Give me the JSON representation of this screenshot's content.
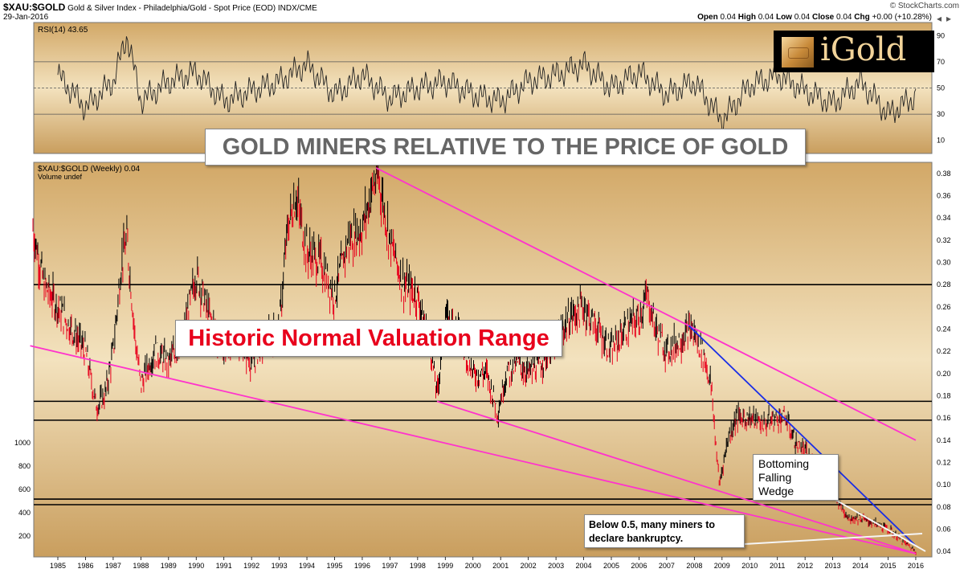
{
  "header": {
    "symbol": "$XAU:$GOLD",
    "description": "Gold & Silver Index - Philadelphia/Gold - Spot Price (EOD)",
    "exchange": "INDX/CME",
    "date": "29-Jan-2016",
    "watermark": "© StockCharts.com",
    "ohlc": {
      "open_label": "Open",
      "open": "0.04",
      "high_label": "High",
      "high": "0.04",
      "low_label": "Low",
      "low": "0.04",
      "close_label": "Close",
      "close": "0.04",
      "chg_label": "Chg",
      "chg": "+0.00 (+10.28%)"
    }
  },
  "logo": {
    "text": "iGold"
  },
  "annotations": {
    "title_box": "GOLD MINERS RELATIVE TO THE PRICE OF GOLD",
    "normal_range": "Historic Normal Valuation Range",
    "wedge": [
      "Bottoming",
      "Falling",
      "Wedge"
    ],
    "bankruptcy": [
      "Below 0.5, many miners to",
      "declare bankruptcy."
    ]
  },
  "colors": {
    "background": "#d9b47c",
    "price_up": "#000000",
    "price_down": "#e8001c",
    "channel": "#ff33cc",
    "wedge_top": "#1a2ee6",
    "level": "#000000"
  },
  "chart_data": [
    {
      "type": "line",
      "title": "RSI(14) 43.65",
      "y_ticks": [
        10,
        30,
        50,
        70,
        90
      ],
      "ylim": [
        0,
        100
      ],
      "reference_lines": [
        30,
        50,
        70
      ],
      "x": [
        1985,
        1986,
        1987,
        1987.5,
        1988,
        1989,
        1990,
        1991,
        1992,
        1993,
        1994,
        1995,
        1996,
        1997,
        1998,
        1999,
        2000,
        2001,
        2002,
        2003,
        2004,
        2005,
        2006,
        2007,
        2008,
        2009,
        2010,
        2011,
        2012,
        2013,
        2014,
        2015,
        2016
      ],
      "values": [
        60,
        35,
        55,
        90,
        40,
        55,
        62,
        40,
        48,
        55,
        68,
        45,
        60,
        42,
        50,
        55,
        45,
        40,
        55,
        60,
        68,
        50,
        62,
        45,
        55,
        25,
        52,
        60,
        48,
        38,
        55,
        30,
        43.65
      ]
    },
    {
      "type": "line",
      "title": "$XAU:$GOLD (Weekly) 0.04",
      "subtitle": "Volume undef",
      "x_ticks": [
        "1985",
        "1986",
        "1987",
        "1988",
        "1989",
        "1990",
        "1991",
        "1992",
        "1993",
        "1994",
        "1995",
        "1996",
        "1997",
        "1998",
        "1999",
        "2000",
        "2001",
        "2002",
        "2003",
        "2004",
        "2005",
        "2006",
        "2007",
        "2008",
        "2009",
        "2010",
        "2011",
        "2012",
        "2013",
        "2014",
        "2015",
        "2016"
      ],
      "y_ticks": [
        0.04,
        0.06,
        0.08,
        0.1,
        0.12,
        0.14,
        0.16,
        0.18,
        0.2,
        0.22,
        0.24,
        0.26,
        0.28,
        0.3,
        0.32,
        0.34,
        0.36,
        0.38
      ],
      "volume_ticks": [
        200,
        400,
        600,
        800,
        1000
      ],
      "ylim": [
        0.035,
        0.39
      ],
      "grid": false,
      "series": [
        {
          "x": [
            1984.1,
            1984.5,
            1985,
            1985.5,
            1986,
            1986.4,
            1986.7,
            1987,
            1987.3,
            1987.5,
            1987.8,
            1988,
            1988.5,
            1989,
            1989.5,
            1990,
            1990.5,
            1991,
            1991.5,
            1992,
            1992.5,
            1993,
            1993.3,
            1993.6,
            1994,
            1994.5,
            1995,
            1995.5,
            1996,
            1996.4,
            1996.6,
            1997,
            1997.5,
            1998,
            1998.5,
            1998.7,
            1999,
            1999.5,
            2000,
            2000.5,
            2000.9,
            2001.2,
            2001.6,
            2002,
            2002.5,
            2003,
            2003.5,
            2004,
            2004.5,
            2005,
            2005.5,
            2006,
            2006.3,
            2006.6,
            2007,
            2007.5,
            2007.9,
            2008.3,
            2008.6,
            2008.9,
            2009.2,
            2009.5,
            2010,
            2010.5,
            2011,
            2011.3,
            2011.7,
            2012,
            2012.5,
            2013,
            2013.3,
            2013.6,
            2014,
            2014.5,
            2015,
            2015.5,
            2016
          ],
          "values": [
            0.33,
            0.28,
            0.26,
            0.24,
            0.22,
            0.17,
            0.18,
            0.22,
            0.3,
            0.32,
            0.23,
            0.19,
            0.22,
            0.21,
            0.23,
            0.29,
            0.25,
            0.22,
            0.23,
            0.21,
            0.23,
            0.24,
            0.33,
            0.36,
            0.31,
            0.3,
            0.27,
            0.32,
            0.33,
            0.37,
            0.375,
            0.32,
            0.28,
            0.27,
            0.22,
            0.18,
            0.25,
            0.24,
            0.2,
            0.2,
            0.165,
            0.2,
            0.21,
            0.2,
            0.21,
            0.23,
            0.25,
            0.26,
            0.24,
            0.22,
            0.24,
            0.25,
            0.27,
            0.24,
            0.22,
            0.23,
            0.24,
            0.22,
            0.19,
            0.1,
            0.14,
            0.16,
            0.16,
            0.155,
            0.16,
            0.16,
            0.135,
            0.13,
            0.11,
            0.095,
            0.08,
            0.07,
            0.07,
            0.065,
            0.06,
            0.05,
            0.04
          ]
        }
      ],
      "horizontal_levels": [
        0.28,
        0.175,
        0.158,
        0.087,
        0.082
      ],
      "trendlines": [
        {
          "color": "magenta",
          "from": [
            1996.5,
            0.385
          ],
          "to": [
            2016,
            0.14
          ]
        },
        {
          "color": "magenta",
          "from": [
            1998.7,
            0.175
          ],
          "to": [
            2016,
            0.038
          ]
        },
        {
          "color": "magenta",
          "from": [
            1984,
            0.225
          ],
          "to": [
            2016,
            0.038
          ]
        },
        {
          "color": "blue",
          "from": [
            2007.8,
            0.243
          ],
          "to": [
            2016,
            0.045
          ]
        }
      ]
    }
  ]
}
